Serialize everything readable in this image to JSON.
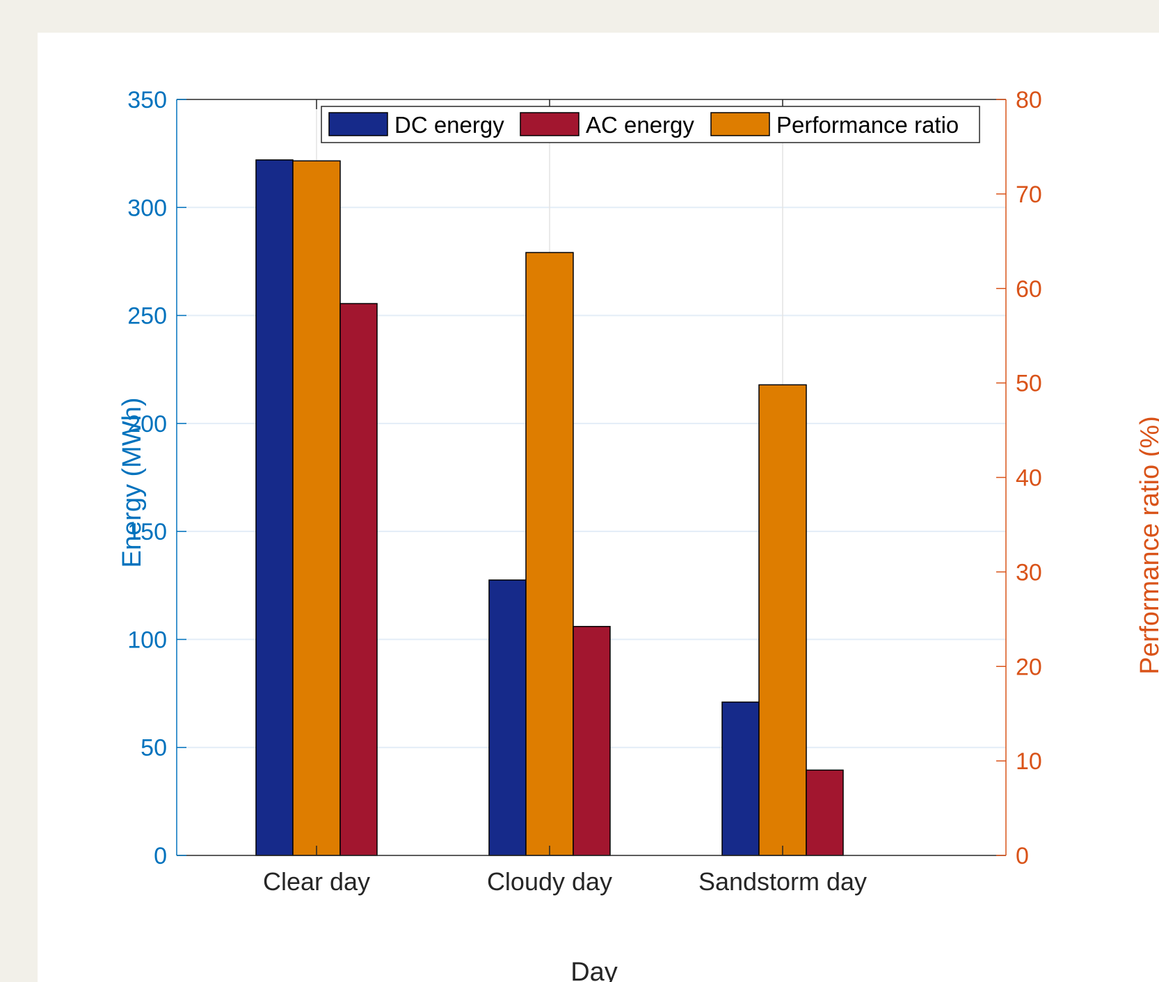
{
  "colors": {
    "dc": "#162a8a",
    "ac": "#a2162f",
    "pr": "#de7d00",
    "left_axis": "#0072bd",
    "right_axis": "#d95319",
    "background": "#f2f0e9"
  },
  "chart_data": {
    "type": "bar",
    "categories": [
      "Clear day",
      "Cloudy day",
      "Sandstorm day"
    ],
    "series": [
      {
        "name": "DC energy",
        "axis": "left",
        "values": [
          322,
          127.5,
          71
        ]
      },
      {
        "name": "Performance ratio",
        "axis": "right",
        "values": [
          73.5,
          63.8,
          49.8
        ]
      },
      {
        "name": "AC energy",
        "axis": "left",
        "values": [
          255.5,
          106,
          39.5
        ]
      }
    ],
    "legend_order": [
      "DC energy",
      "AC energy",
      "Performance ratio"
    ],
    "legend_position": "top",
    "xlabel": "Day",
    "ylabel_left": "Energy (MWh)",
    "ylabel_right": "Performance ratio (%)",
    "ylim_left": [
      0,
      350
    ],
    "ylim_right": [
      0,
      80
    ],
    "yticks_left": [
      0,
      50,
      100,
      150,
      200,
      250,
      300,
      350
    ],
    "yticks_right": [
      0,
      10,
      20,
      30,
      40,
      50,
      60,
      70,
      80
    ],
    "grid": true
  }
}
